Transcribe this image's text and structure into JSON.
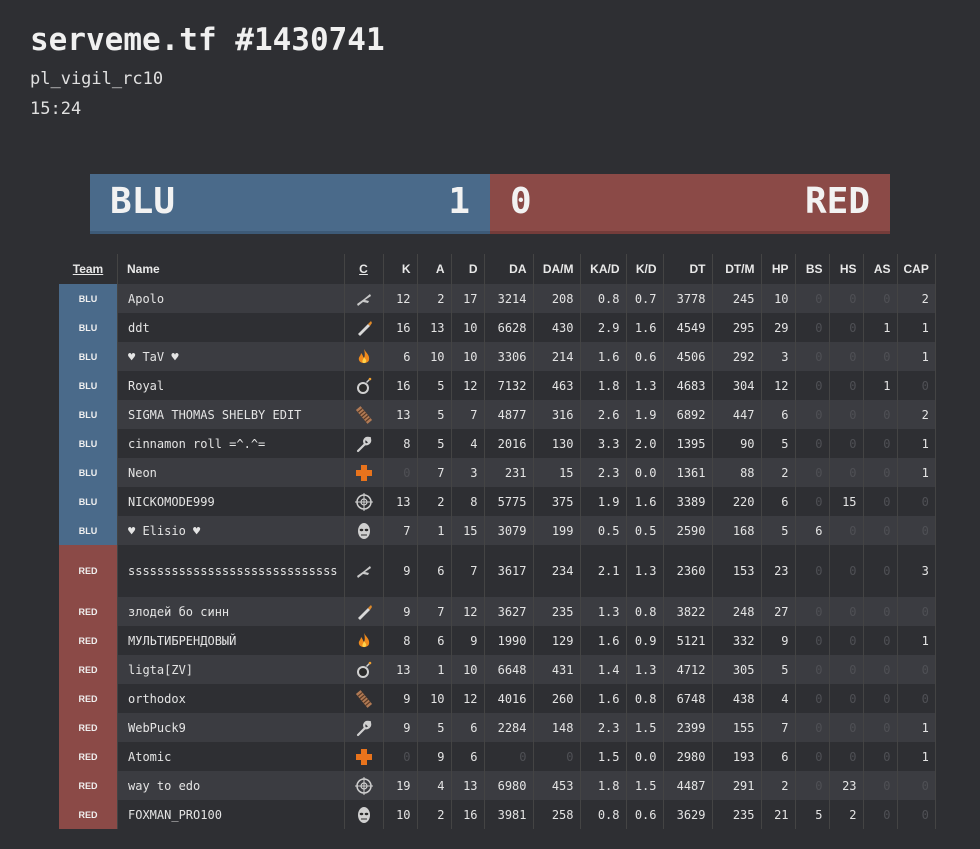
{
  "header": {
    "title": "serveme.tf #1430741",
    "map": "pl_vigil_rc10",
    "duration": "15:24"
  },
  "score": {
    "blu_label": "BLU",
    "blu_score": "1",
    "red_score": "0",
    "red_label": "RED",
    "colors": {
      "blu": "#4a6a8a",
      "red": "#8b4a47"
    }
  },
  "table": {
    "headers": {
      "team": "Team",
      "name": "Name",
      "cls": "C",
      "k": "K",
      "a": "A",
      "d": "D",
      "da": "DA",
      "dam": "DA/M",
      "kad": "KA/D",
      "kd": "K/D",
      "dt": "DT",
      "dtm": "DT/M",
      "hp": "HP",
      "bs": "BS",
      "hs": "HS",
      "as": "AS",
      "cap": "CAP"
    },
    "rows": [
      {
        "team": "BLU",
        "name": "Apolo",
        "cls": "scout-icon",
        "k": "12",
        "a": "2",
        "d": "17",
        "da": "3214",
        "dam": "208",
        "kad": "0.8",
        "kd": "0.7",
        "dt": "3778",
        "dtm": "245",
        "hp": "10",
        "bs": "0",
        "hs": "0",
        "as": "0",
        "cap": "2"
      },
      {
        "team": "BLU",
        "name": "ddt",
        "cls": "soldier-icon",
        "k": "16",
        "a": "13",
        "d": "10",
        "da": "6628",
        "dam": "430",
        "kad": "2.9",
        "kd": "1.6",
        "dt": "4549",
        "dtm": "295",
        "hp": "29",
        "bs": "0",
        "hs": "0",
        "as": "1",
        "cap": "1"
      },
      {
        "team": "BLU",
        "name": "♥ TaV ♥",
        "cls": "pyro-icon",
        "k": "6",
        "a": "10",
        "d": "10",
        "da": "3306",
        "dam": "214",
        "kad": "1.6",
        "kd": "0.6",
        "dt": "4506",
        "dtm": "292",
        "hp": "3",
        "bs": "0",
        "hs": "0",
        "as": "0",
        "cap": "1"
      },
      {
        "team": "BLU",
        "name": "Royal",
        "cls": "demoman-icon",
        "k": "16",
        "a": "5",
        "d": "12",
        "da": "7132",
        "dam": "463",
        "kad": "1.8",
        "kd": "1.3",
        "dt": "4683",
        "dtm": "304",
        "hp": "12",
        "bs": "0",
        "hs": "0",
        "as": "1",
        "cap": "0"
      },
      {
        "team": "BLU",
        "name": "SIGMA THOMAS SHELBY EDIT",
        "cls": "heavy-icon",
        "k": "13",
        "a": "5",
        "d": "7",
        "da": "4877",
        "dam": "316",
        "kad": "2.6",
        "kd": "1.9",
        "dt": "6892",
        "dtm": "447",
        "hp": "6",
        "bs": "0",
        "hs": "0",
        "as": "0",
        "cap": "2"
      },
      {
        "team": "BLU",
        "name": "cinnamon roll =^.^=",
        "cls": "engineer-icon",
        "k": "8",
        "a": "5",
        "d": "4",
        "da": "2016",
        "dam": "130",
        "kad": "3.3",
        "kd": "2.0",
        "dt": "1395",
        "dtm": "90",
        "hp": "5",
        "bs": "0",
        "hs": "0",
        "as": "0",
        "cap": "1"
      },
      {
        "team": "BLU",
        "name": "Neon",
        "cls": "medic-icon",
        "k": "0",
        "a": "7",
        "d": "3",
        "da": "231",
        "dam": "15",
        "kad": "2.3",
        "kd": "0.0",
        "dt": "1361",
        "dtm": "88",
        "hp": "2",
        "bs": "0",
        "hs": "0",
        "as": "0",
        "cap": "1"
      },
      {
        "team": "BLU",
        "name": "NICKOMODE999",
        "cls": "sniper-icon",
        "k": "13",
        "a": "2",
        "d": "8",
        "da": "5775",
        "dam": "375",
        "kad": "1.9",
        "kd": "1.6",
        "dt": "3389",
        "dtm": "220",
        "hp": "6",
        "bs": "0",
        "hs": "15",
        "as": "0",
        "cap": "0"
      },
      {
        "team": "BLU",
        "name": "♥ Elisio ♥",
        "cls": "spy-icon",
        "k": "7",
        "a": "1",
        "d": "15",
        "da": "3079",
        "dam": "199",
        "kad": "0.5",
        "kd": "0.5",
        "dt": "2590",
        "dtm": "168",
        "hp": "5",
        "bs": "6",
        "hs": "0",
        "as": "0",
        "cap": "0"
      },
      {
        "team": "RED",
        "name": "sssssssssssssssssssssssssssss",
        "cls": "scout-icon",
        "k": "9",
        "a": "6",
        "d": "7",
        "da": "3617",
        "dam": "234",
        "kad": "2.1",
        "kd": "1.3",
        "dt": "2360",
        "dtm": "153",
        "hp": "23",
        "bs": "0",
        "hs": "0",
        "as": "0",
        "cap": "3"
      },
      {
        "team": "RED",
        "name": "злодей бо синн",
        "cls": "soldier-icon",
        "k": "9",
        "a": "7",
        "d": "12",
        "da": "3627",
        "dam": "235",
        "kad": "1.3",
        "kd": "0.8",
        "dt": "3822",
        "dtm": "248",
        "hp": "27",
        "bs": "0",
        "hs": "0",
        "as": "0",
        "cap": "0"
      },
      {
        "team": "RED",
        "name": "МУЛЬТИБРЕНДОВЫЙ",
        "cls": "pyro-icon",
        "k": "8",
        "a": "6",
        "d": "9",
        "da": "1990",
        "dam": "129",
        "kad": "1.6",
        "kd": "0.9",
        "dt": "5121",
        "dtm": "332",
        "hp": "9",
        "bs": "0",
        "hs": "0",
        "as": "0",
        "cap": "1"
      },
      {
        "team": "RED",
        "name": "ligta[ZV]",
        "cls": "demoman-icon",
        "k": "13",
        "a": "1",
        "d": "10",
        "da": "6648",
        "dam": "431",
        "kad": "1.4",
        "kd": "1.3",
        "dt": "4712",
        "dtm": "305",
        "hp": "5",
        "bs": "0",
        "hs": "0",
        "as": "0",
        "cap": "0"
      },
      {
        "team": "RED",
        "name": "orthodox",
        "cls": "heavy-icon",
        "k": "9",
        "a": "10",
        "d": "12",
        "da": "4016",
        "dam": "260",
        "kad": "1.6",
        "kd": "0.8",
        "dt": "6748",
        "dtm": "438",
        "hp": "4",
        "bs": "0",
        "hs": "0",
        "as": "0",
        "cap": "0"
      },
      {
        "team": "RED",
        "name": "WebPuck9",
        "cls": "engineer-icon",
        "k": "9",
        "a": "5",
        "d": "6",
        "da": "2284",
        "dam": "148",
        "kad": "2.3",
        "kd": "1.5",
        "dt": "2399",
        "dtm": "155",
        "hp": "7",
        "bs": "0",
        "hs": "0",
        "as": "0",
        "cap": "1"
      },
      {
        "team": "RED",
        "name": "Atomic",
        "cls": "medic-icon",
        "k": "0",
        "a": "9",
        "d": "6",
        "da": "0",
        "dam": "0",
        "kad": "1.5",
        "kd": "0.0",
        "dt": "2980",
        "dtm": "193",
        "hp": "6",
        "bs": "0",
        "hs": "0",
        "as": "0",
        "cap": "1"
      },
      {
        "team": "RED",
        "name": "way to edo",
        "cls": "sniper-icon",
        "k": "19",
        "a": "4",
        "d": "13",
        "da": "6980",
        "dam": "453",
        "kad": "1.8",
        "kd": "1.5",
        "dt": "4487",
        "dtm": "291",
        "hp": "2",
        "bs": "0",
        "hs": "23",
        "as": "0",
        "cap": "0"
      },
      {
        "team": "RED",
        "name": "FOXMAN_PRO100",
        "cls": "spy-icon",
        "k": "10",
        "a": "2",
        "d": "16",
        "da": "3981",
        "dam": "258",
        "kad": "0.8",
        "kd": "0.6",
        "dt": "3629",
        "dtm": "235",
        "hp": "21",
        "bs": "5",
        "hs": "2",
        "as": "0",
        "cap": "0"
      }
    ]
  }
}
